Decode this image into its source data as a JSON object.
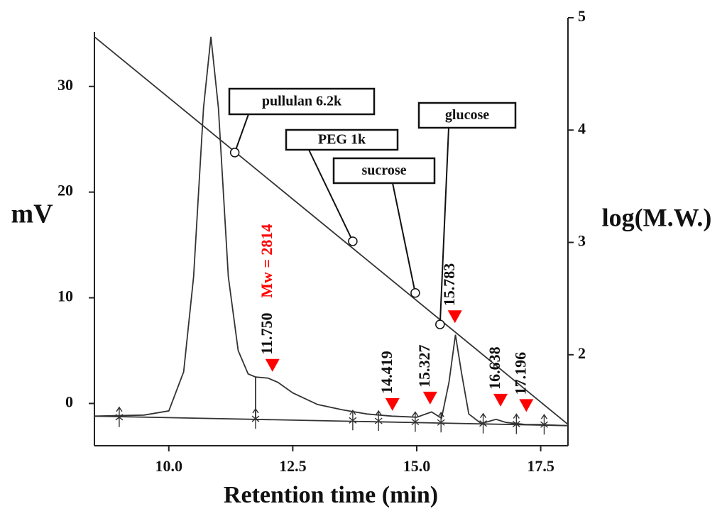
{
  "chart_data": {
    "type": "line",
    "x_label": "Retention time (min)",
    "y_label": "mV",
    "y2_label": "log(M.W.)",
    "xlim": [
      8.5,
      18.05
    ],
    "xticks": [
      {
        "value": 10,
        "label": "10.0"
      },
      {
        "value": 12.5,
        "label": "12.5"
      },
      {
        "value": 15,
        "label": "15.0"
      },
      {
        "value": 17.5,
        "label": "17.5"
      }
    ],
    "ylim": [
      -4,
      36.5
    ],
    "yticks": [
      0,
      10,
      20,
      30
    ],
    "y2lim": [
      1.19,
      5
    ],
    "y2ticks": [
      2,
      3,
      4,
      5
    ],
    "series": [
      {
        "color": "#333333",
        "x": [
          8.5,
          9.5,
          10.0,
          10.3,
          10.5,
          10.7,
          10.85,
          11.0,
          11.2,
          11.4,
          11.6,
          11.75,
          12.0,
          12.2,
          12.5,
          13.0,
          13.5,
          14.0,
          14.5,
          15.0,
          15.3,
          15.5,
          15.65,
          15.78,
          15.9,
          16.05,
          16.3,
          16.6,
          16.8,
          17.2,
          17.5,
          18.0
        ],
        "values": [
          -1.2,
          -1.1,
          -0.7,
          3,
          12,
          28,
          34.7,
          28,
          12,
          5,
          2.8,
          2.5,
          2.4,
          2.0,
          1.0,
          -0.1,
          -0.6,
          -1.0,
          -1.2,
          -1.3,
          -0.8,
          -1.4,
          2,
          6.5,
          3,
          -1.0,
          -1.9,
          -1.5,
          -1.8,
          -2.0,
          -2.0,
          -2.1
        ]
      },
      {
        "color": "#333333",
        "x": [
          8.5,
          18.05
        ],
        "values": [
          -1.2,
          -2.1
        ]
      },
      {
        "color": "#333333",
        "x": [
          11.75,
          11.75
        ],
        "values": [
          -1.4,
          2.5
        ]
      },
      {
        "color": "#333333",
        "axis": "y2",
        "x": [
          8.5,
          18.05
        ],
        "values": [
          4.83,
          1.38
        ]
      }
    ],
    "integration_marks": {
      "x": [
        9.0,
        11.75,
        13.71,
        14.23,
        14.97,
        15.49,
        16.34,
        17.01,
        17.57
      ],
      "values": [
        -1.3,
        -1.45,
        -1.6,
        -1.65,
        -1.75,
        -1.8,
        -1.9,
        -1.95,
        -2.0
      ]
    },
    "peaks": {
      "color": "#ff0000",
      "x": [
        12.09,
        14.51,
        15.27,
        15.77,
        16.69,
        17.21
      ],
      "values": [
        3.0,
        -0.7,
        -0.1,
        7.6,
        -0.3,
        -0.8
      ],
      "labels": [
        "11.750",
        "14.419",
        "15.327",
        "15.783",
        "16.638",
        "17.196"
      ]
    },
    "annotation": "Mw = 2814",
    "standards": {
      "labels": [
        "pullulan 6.2k",
        "PEG 1k",
        "sucrose",
        "glucose"
      ],
      "x": [
        11.33,
        13.71,
        14.97,
        15.47
      ],
      "values": [
        3.8,
        3.01,
        2.55,
        2.27
      ]
    }
  }
}
